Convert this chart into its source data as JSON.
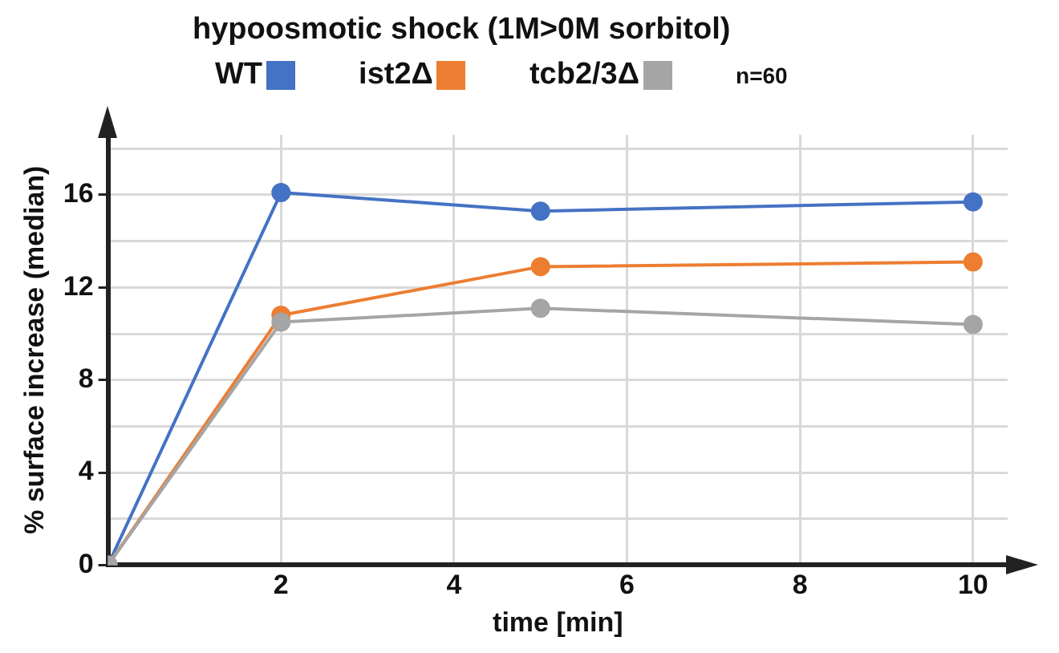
{
  "chart_data": {
    "type": "line",
    "title": "hypoosmotic shock (1M>0M sorbitol)",
    "xlabel": "time [min]",
    "ylabel": "% surface increase (median)",
    "x": [
      0,
      2,
      5,
      10
    ],
    "series": [
      {
        "name": "WT",
        "color": "#4472c4",
        "values": [
          0,
          16.1,
          15.3,
          15.7
        ]
      },
      {
        "name": "ist2Δ",
        "color": "#ed7d31",
        "values": [
          0,
          10.8,
          12.9,
          13.1
        ]
      },
      {
        "name": "tcb2/3Δ",
        "color": "#a5a5a5",
        "values": [
          0,
          10.5,
          11.1,
          10.4
        ]
      }
    ],
    "annotations": [
      "n=60"
    ],
    "xlim": [
      0,
      10.4
    ],
    "xticks": [
      2,
      4,
      6,
      8,
      10
    ],
    "ylim": [
      0,
      18.6
    ],
    "yticks": [
      0,
      {
        "value": 2,
        "label": null
      },
      4,
      {
        "value": 6,
        "label": null
      },
      8,
      {
        "value": 10,
        "label": null
      },
      12,
      {
        "value": 14,
        "label": null
      },
      16,
      {
        "value": 18,
        "label": null
      }
    ],
    "grid": true,
    "legend": "top",
    "marker": "circle",
    "line_style": "solid"
  }
}
